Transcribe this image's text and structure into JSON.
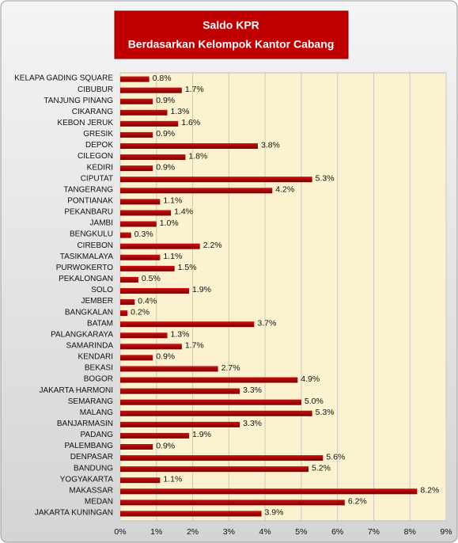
{
  "chart_data": {
    "type": "bar",
    "orientation": "horizontal",
    "title": "Saldo KPR",
    "subtitle": "Berdasarkan Kelompok Kantor Cabang",
    "categories": [
      "KELAPA GADING SQUARE",
      "CIBUBUR",
      "TANJUNG PINANG",
      "CIKARANG",
      "KEBON JERUK",
      "GRESIK",
      "DEPOK",
      "CILEGON",
      "KEDIRI",
      "CIPUTAT",
      "TANGERANG",
      "PONTIANAK",
      "PEKANBARU",
      "JAMBI",
      "BENGKULU",
      "CIREBON",
      "TASIKMALAYA",
      "PURWOKERTO",
      "PEKALONGAN",
      "SOLO",
      "JEMBER",
      "BANGKALAN",
      "BATAM",
      "PALANGKARAYA",
      "SAMARINDA",
      "KENDARI",
      "BEKASI",
      "BOGOR",
      "JAKARTA HARMONI",
      "SEMARANG",
      "MALANG",
      "BANJARMASIN",
      "PADANG",
      "PALEMBANG",
      "DENPASAR",
      "BANDUNG",
      "YOGYAKARTA",
      "MAKASSAR",
      "MEDAN",
      "JAKARTA KUNINGAN"
    ],
    "values": [
      0.8,
      1.7,
      0.9,
      1.3,
      1.6,
      0.9,
      3.8,
      1.8,
      0.9,
      5.3,
      4.2,
      1.1,
      1.4,
      1.0,
      0.3,
      2.2,
      1.1,
      1.5,
      0.5,
      1.9,
      0.4,
      0.2,
      3.7,
      1.3,
      1.7,
      0.9,
      2.7,
      4.9,
      3.3,
      5.0,
      5.3,
      3.3,
      1.9,
      0.9,
      5.6,
      5.2,
      1.1,
      8.2,
      6.2,
      3.9
    ],
    "value_labels": [
      "0.8%",
      "1.7%",
      "0.9%",
      "1.3%",
      "1.6%",
      "0.9%",
      "3.8%",
      "1.8%",
      "0.9%",
      "5.3%",
      "4.2%",
      "1.1%",
      "1.4%",
      "1.0%",
      "0.3%",
      "2.2%",
      "1.1%",
      "1.5%",
      "0.5%",
      "1.9%",
      "0.4%",
      "0.2%",
      "3.7%",
      "1.3%",
      "1.7%",
      "0.9%",
      "2.7%",
      "4.9%",
      "3.3%",
      "5.0%",
      "5.3%",
      "3.3%",
      "1.9%",
      "0.9%",
      "5.6%",
      "5.2%",
      "1.1%",
      "8.2%",
      "6.2%",
      "3.9%"
    ],
    "color": "#b00000",
    "xlim": [
      0,
      9
    ],
    "xticks": [
      {
        "value": 0,
        "label": "0%"
      },
      {
        "value": 1,
        "label": "1%"
      },
      {
        "value": 2,
        "label": "2%"
      },
      {
        "value": 3,
        "label": "3%"
      },
      {
        "value": 4,
        "label": "4%"
      },
      {
        "value": 5,
        "label": "5%"
      },
      {
        "value": 6,
        "label": "6%"
      },
      {
        "value": 7,
        "label": "7%"
      },
      {
        "value": 8,
        "label": "8%"
      },
      {
        "value": 9,
        "label": "9%"
      }
    ],
    "grid": true
  }
}
